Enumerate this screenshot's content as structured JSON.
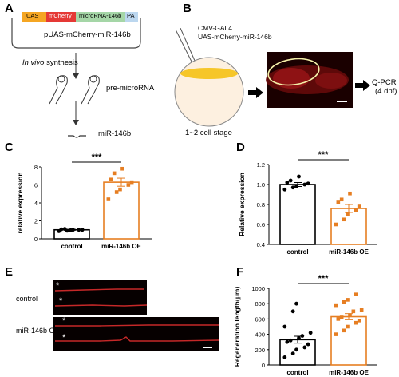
{
  "panels": {
    "A": {
      "letter": "A",
      "construct_segments": [
        "UAS",
        "mCherry",
        "microRNA-146b",
        "PA"
      ],
      "plasmid_name": "pUAS-mCherry-miR-146b",
      "step1": "In vivo synthesis",
      "step1_italic": "In vivo",
      "step1_rest": " synthesis",
      "pre": "pre-microRNA",
      "mature": "miR-146b",
      "colors": {
        "uas": "#f5a623",
        "mcherry": "#e53935",
        "mirna": "#a5d6a7",
        "pa": "#bcd7ef"
      }
    },
    "B": {
      "letter": "B",
      "inject1": "CMV-GAL4",
      "inject2": "UAS-mCherry-miR-146b",
      "stage": "1~2 cell stage",
      "qpcr": "Q-PCR",
      "dpf": "(4 dpf)"
    },
    "C": {
      "letter": "C"
    },
    "D": {
      "letter": "D"
    },
    "E": {
      "letter": "E",
      "control_label": "control",
      "oe_label": "miR-146b OE",
      "asterisk": "*"
    },
    "F": {
      "letter": "F"
    }
  },
  "chart_data": [
    {
      "id": "C",
      "type": "bar",
      "categories": [
        "control",
        "miR-146b OE"
      ],
      "values": [
        1.0,
        6.3
      ],
      "errors": [
        0.05,
        0.45
      ],
      "points": [
        [
          0.85,
          0.9,
          0.95,
          1.0,
          1.0,
          1.05,
          1.1,
          1.0
        ],
        [
          4.4,
          5.2,
          5.5,
          6.0,
          6.3,
          6.6,
          7.3,
          7.8
        ]
      ],
      "ylabel": "relative expression",
      "ylim": [
        0,
        8
      ],
      "yticks": [
        0,
        2,
        4,
        6,
        8
      ],
      "significance": "***",
      "colors": {
        "control": "#000000",
        "oe": "#e67e22"
      }
    },
    {
      "id": "D",
      "type": "bar",
      "categories": [
        "control",
        "miR-146b OE"
      ],
      "values": [
        1.0,
        0.76
      ],
      "errors": [
        0.02,
        0.04
      ],
      "points": [
        [
          0.95,
          0.97,
          0.98,
          1.0,
          1.01,
          1.02,
          1.04,
          1.08
        ],
        [
          0.6,
          0.65,
          0.7,
          0.74,
          0.78,
          0.82,
          0.85,
          0.91
        ]
      ],
      "ylabel": "Relative expression",
      "ylim": [
        0.4,
        1.2
      ],
      "yticks": [
        0.4,
        0.6,
        0.8,
        1.0,
        1.2
      ],
      "significance": "***",
      "colors": {
        "control": "#000000",
        "oe": "#e67e22"
      }
    },
    {
      "id": "F",
      "type": "bar",
      "categories": [
        "control",
        "miR-146b OE"
      ],
      "values": [
        330,
        630
      ],
      "errors": [
        45,
        40
      ],
      "points": [
        [
          100,
          150,
          200,
          230,
          270,
          300,
          320,
          350,
          380,
          420,
          500,
          700,
          800
        ],
        [
          400,
          450,
          500,
          550,
          580,
          600,
          620,
          650,
          700,
          720,
          780,
          820,
          850,
          920
        ]
      ],
      "ylabel": "Regeneration length(μm)",
      "ylim": [
        0,
        1000
      ],
      "yticks": [
        0,
        200,
        400,
        600,
        800,
        1000
      ],
      "significance": "***",
      "colors": {
        "control": "#000000",
        "oe": "#e67e22"
      }
    }
  ]
}
